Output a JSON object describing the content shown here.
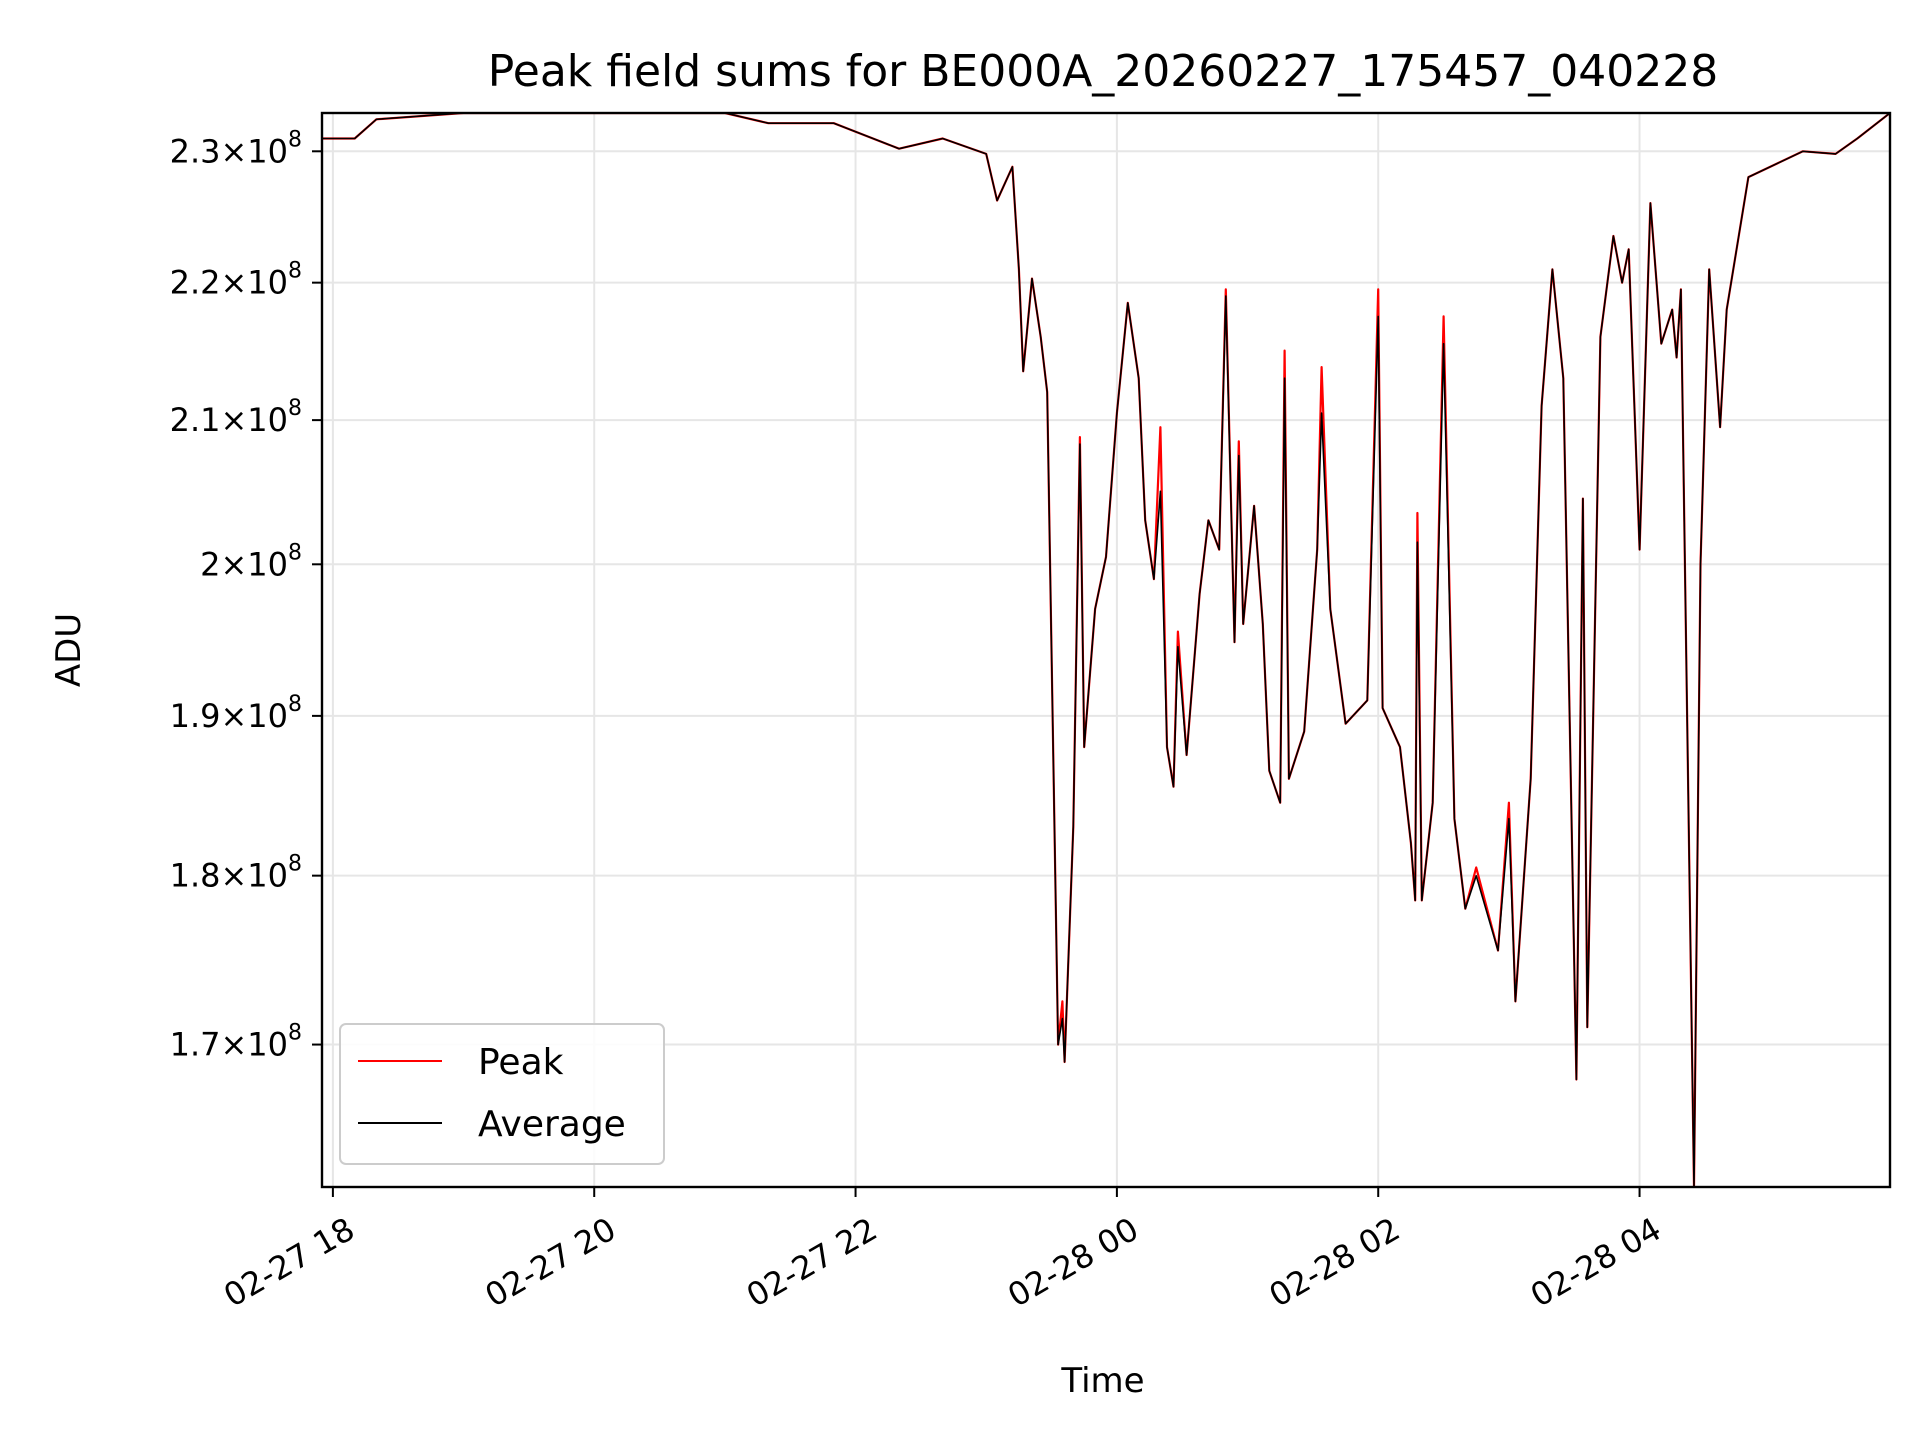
{
  "chart_data": {
    "type": "line",
    "title": "Peak field sums for BE000A_20260227_175457_040228",
    "xlabel": "Time",
    "ylabel": "ADU",
    "y_scale": "log",
    "x_range": [
      "2026-02-27 17:55",
      "2026-02-28 05:55"
    ],
    "ylim": [
      162000000,
      233000000
    ],
    "grid": true,
    "legend_position": "lower-left",
    "x_ticks": [
      {
        "x": "2026-02-27 18:00",
        "label": "02-27 18"
      },
      {
        "x": "2026-02-27 20:00",
        "label": "02-27 20"
      },
      {
        "x": "2026-02-27 22:00",
        "label": "02-27 22"
      },
      {
        "x": "2026-02-28 00:00",
        "label": "02-28 00"
      },
      {
        "x": "2026-02-28 02:00",
        "label": "02-28 02"
      },
      {
        "x": "2026-02-28 04:00",
        "label": "02-28 04"
      }
    ],
    "y_ticks": [
      {
        "value": 170000000,
        "mantissa": "1.7",
        "exp": "8"
      },
      {
        "value": 180000000,
        "mantissa": "1.8",
        "exp": "8"
      },
      {
        "value": 190000000,
        "mantissa": "1.9",
        "exp": "8"
      },
      {
        "value": 200000000,
        "mantissa": "2",
        "exp": "8"
      },
      {
        "value": 210000000,
        "mantissa": "2.1",
        "exp": "8"
      },
      {
        "value": 220000000,
        "mantissa": "2.2",
        "exp": "8"
      },
      {
        "value": 230000000,
        "mantissa": "2.3",
        "exp": "8"
      }
    ],
    "series": [
      {
        "name": "Peak",
        "color": "#ff0000",
        "points": [
          [
            "2026-02-27 17:55",
            231000000
          ],
          [
            "2026-02-27 18:10",
            231000000
          ],
          [
            "2026-02-27 18:20",
            232500000
          ],
          [
            "2026-02-27 19:00",
            233000000
          ],
          [
            "2026-02-27 21:00",
            233000000
          ],
          [
            "2026-02-27 21:20",
            232200000
          ],
          [
            "2026-02-27 21:50",
            232200000
          ],
          [
            "2026-02-27 22:20",
            230200000
          ],
          [
            "2026-02-27 22:40",
            231000000
          ],
          [
            "2026-02-27 23:00",
            229800000
          ],
          [
            "2026-02-27 23:05",
            226200000
          ],
          [
            "2026-02-27 23:12",
            228800000
          ],
          [
            "2026-02-27 23:15",
            221000000
          ],
          [
            "2026-02-27 23:17",
            213500000
          ],
          [
            "2026-02-27 23:21",
            220300000
          ],
          [
            "2026-02-27 23:25",
            216000000
          ],
          [
            "2026-02-27 23:28",
            212000000
          ],
          [
            "2026-02-27 23:33",
            170000000
          ],
          [
            "2026-02-27 23:35",
            172500000
          ],
          [
            "2026-02-27 23:36",
            169000000
          ],
          [
            "2026-02-27 23:40",
            183000000
          ],
          [
            "2026-02-27 23:43",
            208800000
          ],
          [
            "2026-02-27 23:45",
            188000000
          ],
          [
            "2026-02-27 23:50",
            197000000
          ],
          [
            "2026-02-27 23:55",
            200500000
          ],
          [
            "2026-02-28 00:00",
            210500000
          ],
          [
            "2026-02-28 00:05",
            218500000
          ],
          [
            "2026-02-28 00:10",
            213000000
          ],
          [
            "2026-02-28 00:13",
            203000000
          ],
          [
            "2026-02-28 00:17",
            199000000
          ],
          [
            "2026-02-28 00:20",
            209500000
          ],
          [
            "2026-02-28 00:23",
            188000000
          ],
          [
            "2026-02-28 00:26",
            185500000
          ],
          [
            "2026-02-28 00:28",
            195500000
          ],
          [
            "2026-02-28 00:32",
            187500000
          ],
          [
            "2026-02-28 00:38",
            198000000
          ],
          [
            "2026-02-28 00:42",
            203000000
          ],
          [
            "2026-02-28 00:47",
            201000000
          ],
          [
            "2026-02-28 00:50",
            219500000
          ],
          [
            "2026-02-28 00:54",
            194800000
          ],
          [
            "2026-02-28 00:56",
            208500000
          ],
          [
            "2026-02-28 00:58",
            196000000
          ],
          [
            "2026-02-28 01:03",
            204000000
          ],
          [
            "2026-02-28 01:07",
            196000000
          ],
          [
            "2026-02-28 01:10",
            186500000
          ],
          [
            "2026-02-28 01:15",
            184500000
          ],
          [
            "2026-02-28 01:17",
            215000000
          ],
          [
            "2026-02-28 01:19",
            186000000
          ],
          [
            "2026-02-28 01:26",
            189000000
          ],
          [
            "2026-02-28 01:32",
            201000000
          ],
          [
            "2026-02-28 01:34",
            213800000
          ],
          [
            "2026-02-28 01:38",
            197000000
          ],
          [
            "2026-02-28 01:45",
            189500000
          ],
          [
            "2026-02-28 01:55",
            191000000
          ],
          [
            "2026-02-28 02:00",
            219500000
          ],
          [
            "2026-02-28 02:02",
            190500000
          ],
          [
            "2026-02-28 02:10",
            188000000
          ],
          [
            "2026-02-28 02:15",
            182000000
          ],
          [
            "2026-02-28 02:17",
            178500000
          ],
          [
            "2026-02-28 02:18",
            203500000
          ],
          [
            "2026-02-28 02:20",
            178500000
          ],
          [
            "2026-02-28 02:25",
            184500000
          ],
          [
            "2026-02-28 02:30",
            217500000
          ],
          [
            "2026-02-28 02:35",
            183500000
          ],
          [
            "2026-02-28 02:40",
            178000000
          ],
          [
            "2026-02-28 02:45",
            180500000
          ],
          [
            "2026-02-28 02:55",
            175500000
          ],
          [
            "2026-02-28 03:00",
            184500000
          ],
          [
            "2026-02-28 03:03",
            172500000
          ],
          [
            "2026-02-28 03:10",
            186000000
          ],
          [
            "2026-02-28 03:15",
            211000000
          ],
          [
            "2026-02-28 03:20",
            221000000
          ],
          [
            "2026-02-28 03:25",
            213000000
          ],
          [
            "2026-02-28 03:31",
            168000000
          ],
          [
            "2026-02-28 03:34",
            204500000
          ],
          [
            "2026-02-28 03:36",
            171000000
          ],
          [
            "2026-02-28 03:42",
            216000000
          ],
          [
            "2026-02-28 03:48",
            223500000
          ],
          [
            "2026-02-28 03:52",
            220000000
          ],
          [
            "2026-02-28 03:55",
            222500000
          ],
          [
            "2026-02-28 04:00",
            201000000
          ],
          [
            "2026-02-28 04:05",
            226000000
          ],
          [
            "2026-02-28 04:10",
            215500000
          ],
          [
            "2026-02-28 04:15",
            218000000
          ],
          [
            "2026-02-28 04:17",
            214500000
          ],
          [
            "2026-02-28 04:19",
            219500000
          ],
          [
            "2026-02-28 04:25",
            162000000
          ],
          [
            "2026-02-28 04:28",
            200000000
          ],
          [
            "2026-02-28 04:32",
            221000000
          ],
          [
            "2026-02-28 04:37",
            209500000
          ],
          [
            "2026-02-28 04:40",
            218000000
          ],
          [
            "2026-02-28 04:50",
            228000000
          ],
          [
            "2026-02-28 05:15",
            230000000
          ],
          [
            "2026-02-28 05:30",
            229800000
          ],
          [
            "2026-02-28 05:40",
            231000000
          ],
          [
            "2026-02-28 05:55",
            233000000
          ]
        ]
      },
      {
        "name": "Average",
        "color": "#000000",
        "points": [
          [
            "2026-02-27 17:55",
            231000000
          ],
          [
            "2026-02-27 18:10",
            231000000
          ],
          [
            "2026-02-27 18:20",
            232500000
          ],
          [
            "2026-02-27 19:00",
            233000000
          ],
          [
            "2026-02-27 21:00",
            233000000
          ],
          [
            "2026-02-27 21:20",
            232200000
          ],
          [
            "2026-02-27 21:50",
            232200000
          ],
          [
            "2026-02-27 22:20",
            230200000
          ],
          [
            "2026-02-27 22:40",
            231000000
          ],
          [
            "2026-02-27 23:00",
            229800000
          ],
          [
            "2026-02-27 23:05",
            226200000
          ],
          [
            "2026-02-27 23:12",
            228800000
          ],
          [
            "2026-02-27 23:15",
            221000000
          ],
          [
            "2026-02-27 23:17",
            213500000
          ],
          [
            "2026-02-27 23:21",
            220300000
          ],
          [
            "2026-02-27 23:25",
            216000000
          ],
          [
            "2026-02-27 23:28",
            212000000
          ],
          [
            "2026-02-27 23:33",
            170000000
          ],
          [
            "2026-02-27 23:35",
            171500000
          ],
          [
            "2026-02-27 23:36",
            169000000
          ],
          [
            "2026-02-27 23:40",
            183000000
          ],
          [
            "2026-02-27 23:43",
            208300000
          ],
          [
            "2026-02-27 23:45",
            188000000
          ],
          [
            "2026-02-27 23:50",
            197000000
          ],
          [
            "2026-02-27 23:55",
            200500000
          ],
          [
            "2026-02-28 00:00",
            210500000
          ],
          [
            "2026-02-28 00:05",
            218500000
          ],
          [
            "2026-02-28 00:10",
            213000000
          ],
          [
            "2026-02-28 00:13",
            203000000
          ],
          [
            "2026-02-28 00:17",
            199000000
          ],
          [
            "2026-02-28 00:20",
            205000000
          ],
          [
            "2026-02-28 00:23",
            188000000
          ],
          [
            "2026-02-28 00:26",
            185500000
          ],
          [
            "2026-02-28 00:28",
            194500000
          ],
          [
            "2026-02-28 00:32",
            187500000
          ],
          [
            "2026-02-28 00:38",
            198000000
          ],
          [
            "2026-02-28 00:42",
            203000000
          ],
          [
            "2026-02-28 00:47",
            201000000
          ],
          [
            "2026-02-28 00:50",
            219000000
          ],
          [
            "2026-02-28 00:54",
            194800000
          ],
          [
            "2026-02-28 00:56",
            207500000
          ],
          [
            "2026-02-28 00:58",
            196000000
          ],
          [
            "2026-02-28 01:03",
            204000000
          ],
          [
            "2026-02-28 01:07",
            196000000
          ],
          [
            "2026-02-28 01:10",
            186500000
          ],
          [
            "2026-02-28 01:15",
            184500000
          ],
          [
            "2026-02-28 01:17",
            213000000
          ],
          [
            "2026-02-28 01:19",
            186000000
          ],
          [
            "2026-02-28 01:26",
            189000000
          ],
          [
            "2026-02-28 01:32",
            201000000
          ],
          [
            "2026-02-28 01:34",
            210500000
          ],
          [
            "2026-02-28 01:38",
            197000000
          ],
          [
            "2026-02-28 01:45",
            189500000
          ],
          [
            "2026-02-28 01:55",
            191000000
          ],
          [
            "2026-02-28 02:00",
            217500000
          ],
          [
            "2026-02-28 02:02",
            190500000
          ],
          [
            "2026-02-28 02:10",
            188000000
          ],
          [
            "2026-02-28 02:15",
            182000000
          ],
          [
            "2026-02-28 02:17",
            178500000
          ],
          [
            "2026-02-28 02:18",
            201500000
          ],
          [
            "2026-02-28 02:20",
            178500000
          ],
          [
            "2026-02-28 02:25",
            184500000
          ],
          [
            "2026-02-28 02:30",
            215500000
          ],
          [
            "2026-02-28 02:35",
            183500000
          ],
          [
            "2026-02-28 02:40",
            178000000
          ],
          [
            "2026-02-28 02:45",
            180000000
          ],
          [
            "2026-02-28 02:55",
            175500000
          ],
          [
            "2026-02-28 03:00",
            183500000
          ],
          [
            "2026-02-28 03:03",
            172500000
          ],
          [
            "2026-02-28 03:10",
            186000000
          ],
          [
            "2026-02-28 03:15",
            211000000
          ],
          [
            "2026-02-28 03:20",
            221000000
          ],
          [
            "2026-02-28 03:25",
            213000000
          ],
          [
            "2026-02-28 03:31",
            168000000
          ],
          [
            "2026-02-28 03:34",
            204500000
          ],
          [
            "2026-02-28 03:36",
            171000000
          ],
          [
            "2026-02-28 03:42",
            216000000
          ],
          [
            "2026-02-28 03:48",
            223500000
          ],
          [
            "2026-02-28 03:52",
            220000000
          ],
          [
            "2026-02-28 03:55",
            222500000
          ],
          [
            "2026-02-28 04:00",
            201000000
          ],
          [
            "2026-02-28 04:05",
            226000000
          ],
          [
            "2026-02-28 04:10",
            215500000
          ],
          [
            "2026-02-28 04:15",
            218000000
          ],
          [
            "2026-02-28 04:17",
            214500000
          ],
          [
            "2026-02-28 04:19",
            219500000
          ],
          [
            "2026-02-28 04:25",
            162000000
          ],
          [
            "2026-02-28 04:28",
            200000000
          ],
          [
            "2026-02-28 04:32",
            221000000
          ],
          [
            "2026-02-28 04:37",
            209500000
          ],
          [
            "2026-02-28 04:40",
            218000000
          ],
          [
            "2026-02-28 04:50",
            228000000
          ],
          [
            "2026-02-28 05:15",
            230000000
          ],
          [
            "2026-02-28 05:30",
            229800000
          ],
          [
            "2026-02-28 05:40",
            231000000
          ],
          [
            "2026-02-28 05:55",
            233000000
          ]
        ]
      }
    ]
  }
}
